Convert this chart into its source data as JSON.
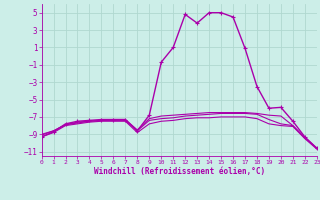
{
  "xlabel": "Windchill (Refroidissement éolien,°C)",
  "background_color": "#cceee8",
  "grid_color": "#b0d8d0",
  "line_color": "#aa00aa",
  "xlim": [
    0,
    23
  ],
  "ylim": [
    -11.5,
    6
  ],
  "xticks": [
    0,
    1,
    2,
    3,
    4,
    5,
    6,
    7,
    8,
    9,
    10,
    11,
    12,
    13,
    14,
    15,
    16,
    17,
    18,
    19,
    20,
    21,
    22,
    23
  ],
  "yticks": [
    -11,
    -9,
    -7,
    -5,
    -3,
    -1,
    1,
    3,
    5
  ],
  "series": [
    {
      "x": [
        0,
        1,
        2,
        3,
        4,
        5,
        6,
        7,
        8,
        9,
        10,
        11,
        12,
        13,
        14,
        15,
        16,
        17,
        18,
        19,
        20,
        21,
        22,
        23
      ],
      "y": [
        -9.3,
        -8.7,
        -7.8,
        -7.5,
        -7.4,
        -7.3,
        -7.3,
        -7.3,
        -8.6,
        -6.8,
        -0.7,
        1.0,
        4.8,
        3.8,
        5.0,
        5.0,
        4.5,
        0.9,
        -3.5,
        -6.0,
        -5.9,
        -7.5,
        -9.3,
        -10.6
      ],
      "marker": true,
      "lw": 1.0
    },
    {
      "x": [
        0,
        1,
        2,
        3,
        4,
        5,
        6,
        7,
        8,
        9,
        10,
        11,
        12,
        13,
        14,
        15,
        16,
        17,
        18,
        19,
        20,
        21,
        22,
        23
      ],
      "y": [
        -9.3,
        -8.8,
        -8.0,
        -7.8,
        -7.6,
        -7.5,
        -7.5,
        -7.5,
        -8.8,
        -7.8,
        -7.5,
        -7.4,
        -7.2,
        -7.1,
        -7.1,
        -7.0,
        -7.0,
        -7.0,
        -7.2,
        -7.8,
        -8.0,
        -8.1,
        -9.5,
        -10.7
      ],
      "marker": false,
      "lw": 0.8
    },
    {
      "x": [
        0,
        1,
        2,
        3,
        4,
        5,
        6,
        7,
        8,
        9,
        10,
        11,
        12,
        13,
        14,
        15,
        16,
        17,
        18,
        19,
        20,
        21,
        22,
        23
      ],
      "y": [
        -9.0,
        -8.6,
        -7.9,
        -7.6,
        -7.5,
        -7.4,
        -7.3,
        -7.3,
        -8.5,
        -7.2,
        -6.9,
        -6.8,
        -6.7,
        -6.6,
        -6.5,
        -6.5,
        -6.5,
        -6.5,
        -6.6,
        -6.8,
        -6.9,
        -8.0,
        -9.4,
        -10.6
      ],
      "marker": false,
      "lw": 0.8
    },
    {
      "x": [
        0,
        1,
        2,
        3,
        4,
        5,
        6,
        7,
        8,
        9,
        10,
        11,
        12,
        13,
        14,
        15,
        16,
        17,
        18,
        19,
        20,
        21,
        22,
        23
      ],
      "y": [
        -9.1,
        -8.6,
        -7.9,
        -7.7,
        -7.5,
        -7.4,
        -7.4,
        -7.4,
        -8.6,
        -7.4,
        -7.2,
        -7.1,
        -6.9,
        -6.8,
        -6.7,
        -6.6,
        -6.6,
        -6.6,
        -6.7,
        -7.3,
        -7.8,
        -8.0,
        -9.4,
        -10.6
      ],
      "marker": false,
      "lw": 0.8
    }
  ]
}
